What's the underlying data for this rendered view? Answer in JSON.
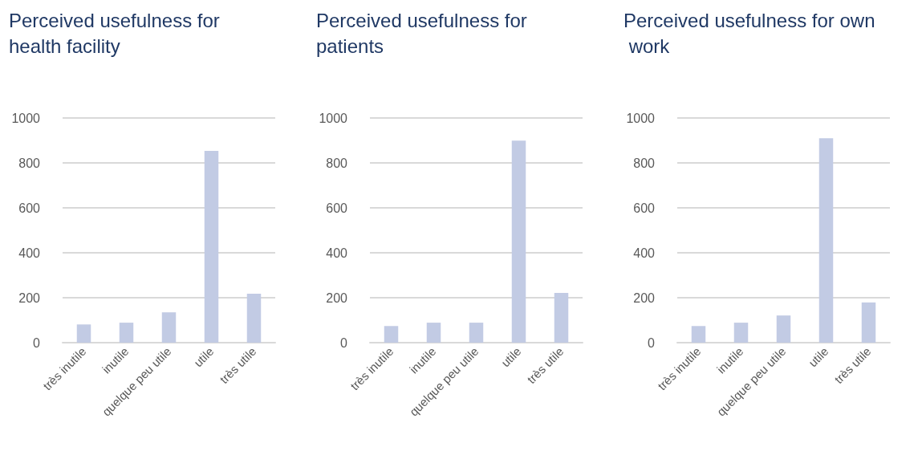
{
  "chart_data": [
    {
      "type": "bar",
      "title": "Perceived usefulness for health facility",
      "categories": [
        "très inutile",
        "inutile",
        "quelque peu utile",
        "utile",
        "très utile"
      ],
      "values": [
        81,
        89,
        135,
        854,
        218
      ],
      "color": "#c2cbe4",
      "ylim": [
        0,
        1000
      ],
      "yticks": [
        0,
        200,
        400,
        600,
        800,
        1000
      ],
      "grid": "y"
    },
    {
      "type": "bar",
      "title": "Perceived usefulness for patients",
      "categories": [
        "très inutile",
        "inutile",
        "quelque peu utile",
        "utile",
        "très utile"
      ],
      "values": [
        74,
        89,
        89,
        899,
        221
      ],
      "color": "#c2cbe4",
      "ylim": [
        0,
        1000
      ],
      "yticks": [
        0,
        200,
        400,
        600,
        800,
        1000
      ],
      "grid": "y"
    },
    {
      "type": "bar",
      "title": "Perceived usefulness for own work",
      "categories": [
        "très inutile",
        "inutile",
        "quelque peu utile",
        "utile",
        "très utile"
      ],
      "values": [
        74,
        89,
        121,
        910,
        179
      ],
      "color": "#c2cbe4",
      "ylim": [
        0,
        1000
      ],
      "yticks": [
        0,
        200,
        400,
        600,
        800,
        1000
      ],
      "grid": "y"
    }
  ]
}
